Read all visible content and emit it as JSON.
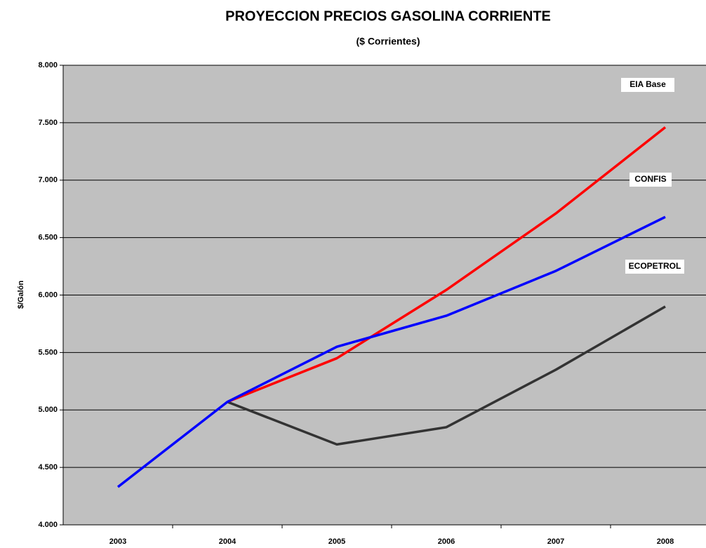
{
  "chart_data": {
    "type": "line",
    "title": "PROYECCION PRECIOS GASOLINA CORRIENTE",
    "subtitle": "($ Corrientes)",
    "y_label": "$/Galón",
    "categories": [
      "2003",
      "2004",
      "2005",
      "2006",
      "2007",
      "2008"
    ],
    "series": [
      {
        "name": "ECOPETROL",
        "color": "#333333",
        "values": [
          null,
          5070,
          4700,
          4850,
          5350,
          5900
        ]
      },
      {
        "name": "EIA Base",
        "color": "#ff0000",
        "values": [
          null,
          5070,
          5450,
          6045,
          6710,
          7460
        ]
      },
      {
        "name": "CONFIS",
        "color": "#0000ff",
        "values": [
          4330,
          5070,
          5550,
          5820,
          6210,
          6680
        ]
      }
    ],
    "ylim": [
      4000,
      8000
    ],
    "yticks": [
      {
        "value": 4000,
        "label": "4.000"
      },
      {
        "value": 4500,
        "label": "4.500"
      },
      {
        "value": 5000,
        "label": "5.000"
      },
      {
        "value": 5500,
        "label": "5.500"
      },
      {
        "value": 6000,
        "label": "6.000"
      },
      {
        "value": 6500,
        "label": "6.500"
      },
      {
        "value": 7000,
        "label": "7.000"
      },
      {
        "value": 7500,
        "label": "7.500"
      },
      {
        "value": 8000,
        "label": "8.000"
      }
    ],
    "grid": true
  }
}
